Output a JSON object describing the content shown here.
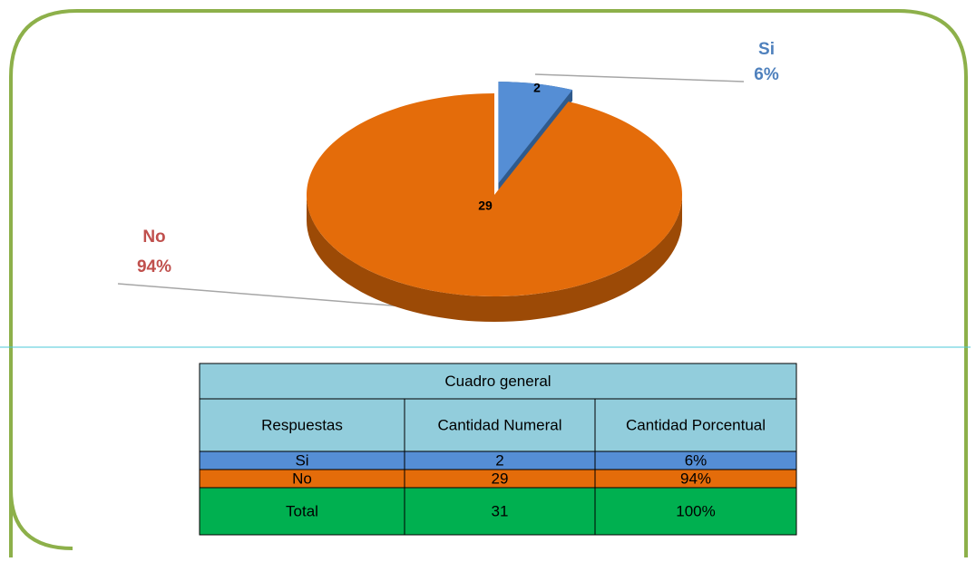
{
  "chart_data": {
    "type": "pie",
    "categories": [
      "Si",
      "No"
    ],
    "values": [
      2,
      29
    ],
    "percent_labels": [
      "6%",
      "94%"
    ],
    "colors": [
      "#558ed5",
      "#e46c0a"
    ],
    "label_colors": [
      "#4f81bd",
      "#c0504d"
    ]
  },
  "table": {
    "title": "Cuadro general",
    "header": [
      "Respuestas",
      "Cantidad Numeral",
      "Cantidad Porcentual"
    ],
    "rows": [
      [
        "Si",
        2,
        "6%"
      ],
      [
        "No",
        29,
        "94%"
      ],
      [
        "Total",
        31,
        "100%"
      ]
    ],
    "row_colors": [
      "#558ed5",
      "#e46c0a",
      "#00b050"
    ],
    "header_color": "#92cddc"
  }
}
